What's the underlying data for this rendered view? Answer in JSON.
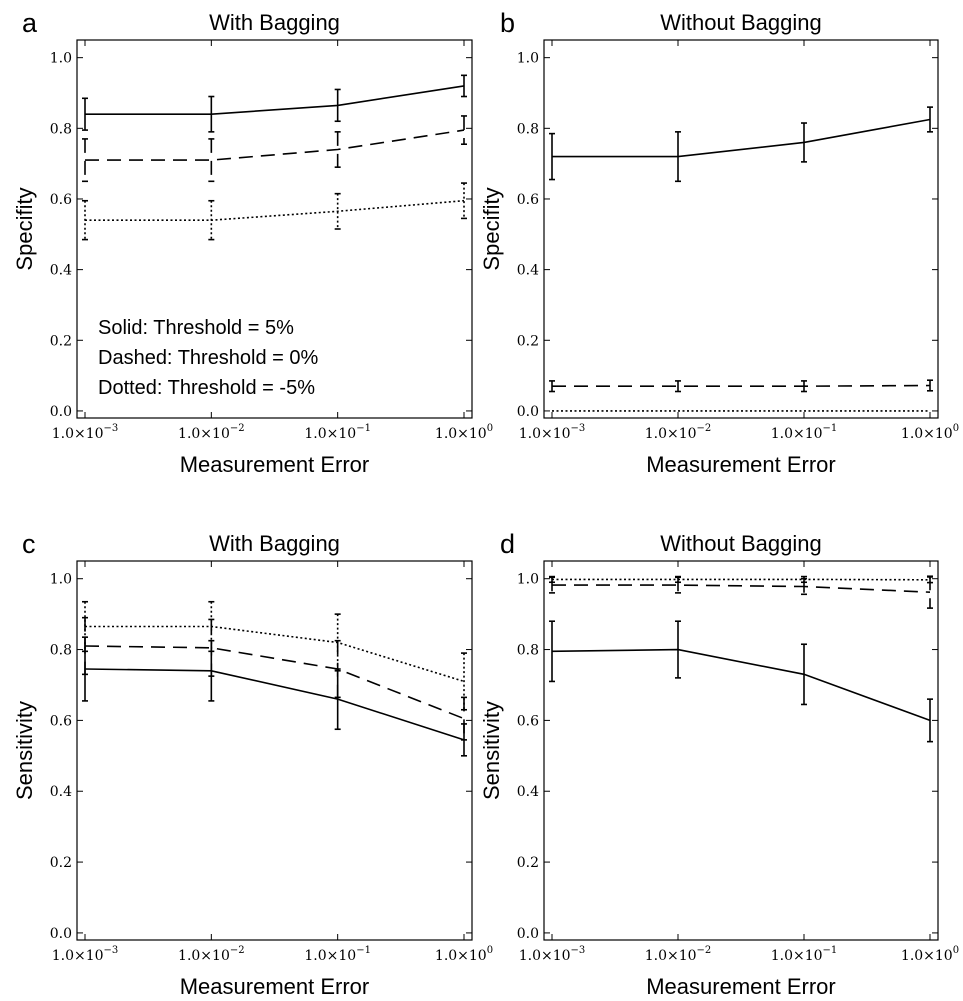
{
  "chart_data": [
    {
      "panel": "a",
      "type": "line",
      "title": "With Bagging",
      "xlabel": "Measurement Error",
      "ylabel": "Specifity",
      "xscale": "log",
      "x": [
        0.001,
        0.01,
        0.1,
        1
      ],
      "x_tick_labels": [
        {
          "base": "1.0×10",
          "exp": "−3"
        },
        {
          "base": "1.0×10",
          "exp": "−2"
        },
        {
          "base": "1.0×10",
          "exp": "−1"
        },
        {
          "base": "1.0×10",
          "exp": "0"
        }
      ],
      "y_ticks": [
        "0.0",
        "0.2",
        "0.4",
        "0.6",
        "0.8",
        "1.0"
      ],
      "ylim": [
        -0.02,
        1.05
      ],
      "grid": false,
      "legend_lines": [
        "Solid: Threshold = 5%",
        "Dashed: Threshold = 0%",
        "Dotted: Threshold = -5%"
      ],
      "series": [
        {
          "style": "solid",
          "values": [
            0.84,
            0.84,
            0.865,
            0.92
          ],
          "err": [
            0.045,
            0.05,
            0.045,
            0.03
          ]
        },
        {
          "style": "dashed",
          "values": [
            0.71,
            0.71,
            0.74,
            0.795
          ],
          "err": [
            0.06,
            0.06,
            0.05,
            0.04
          ]
        },
        {
          "style": "dotted",
          "values": [
            0.54,
            0.54,
            0.565,
            0.595
          ],
          "err": [
            0.055,
            0.055,
            0.05,
            0.05
          ]
        }
      ]
    },
    {
      "panel": "b",
      "type": "line",
      "title": "Without Bagging",
      "xlabel": "Measurement Error",
      "ylabel": "Specifity",
      "xscale": "log",
      "x": [
        0.001,
        0.01,
        0.1,
        1
      ],
      "x_tick_labels": [
        {
          "base": "1.0×10",
          "exp": "−3"
        },
        {
          "base": "1.0×10",
          "exp": "−2"
        },
        {
          "base": "1.0×10",
          "exp": "−1"
        },
        {
          "base": "1.0×10",
          "exp": "0"
        }
      ],
      "y_ticks": [
        "0.0",
        "0.2",
        "0.4",
        "0.6",
        "0.8",
        "1.0"
      ],
      "ylim": [
        -0.02,
        1.05
      ],
      "grid": false,
      "legend_lines": [],
      "series": [
        {
          "style": "solid",
          "values": [
            0.72,
            0.72,
            0.76,
            0.825
          ],
          "err": [
            0.065,
            0.07,
            0.055,
            0.035
          ]
        },
        {
          "style": "dashed",
          "values": [
            0.07,
            0.07,
            0.07,
            0.072
          ],
          "err": [
            0.015,
            0.015,
            0.015,
            0.015
          ]
        },
        {
          "style": "dotted",
          "values": [
            0.0,
            0.0,
            0.0,
            0.0
          ],
          "err": [
            0,
            0,
            0,
            0
          ]
        }
      ]
    },
    {
      "panel": "c",
      "type": "line",
      "title": "With Bagging",
      "xlabel": "Measurement Error",
      "ylabel": "Sensitivity",
      "xscale": "log",
      "x": [
        0.001,
        0.01,
        0.1,
        1
      ],
      "x_tick_labels": [
        {
          "base": "1.0×10",
          "exp": "−3"
        },
        {
          "base": "1.0×10",
          "exp": "−2"
        },
        {
          "base": "1.0×10",
          "exp": "−1"
        },
        {
          "base": "1.0×10",
          "exp": "0"
        }
      ],
      "y_ticks": [
        "0.0",
        "0.2",
        "0.4",
        "0.6",
        "0.8",
        "1.0"
      ],
      "ylim": [
        -0.02,
        1.05
      ],
      "grid": false,
      "legend_lines": [],
      "series": [
        {
          "style": "solid",
          "values": [
            0.745,
            0.74,
            0.66,
            0.545
          ],
          "err": [
            0.09,
            0.085,
            0.085,
            0.045
          ]
        },
        {
          "style": "dashed",
          "values": [
            0.81,
            0.805,
            0.745,
            0.605
          ],
          "err": [
            0.08,
            0.08,
            0.08,
            0.06
          ]
        },
        {
          "style": "dotted",
          "values": [
            0.865,
            0.865,
            0.82,
            0.71
          ],
          "err": [
            0.07,
            0.07,
            0.08,
            0.08
          ]
        }
      ]
    },
    {
      "panel": "d",
      "type": "line",
      "title": "Without Bagging",
      "xlabel": "Measurement Error",
      "ylabel": "Sensitivity",
      "xscale": "log",
      "x": [
        0.001,
        0.01,
        0.1,
        1
      ],
      "x_tick_labels": [
        {
          "base": "1.0×10",
          "exp": "−3"
        },
        {
          "base": "1.0×10",
          "exp": "−2"
        },
        {
          "base": "1.0×10",
          "exp": "−1"
        },
        {
          "base": "1.0×10",
          "exp": "0"
        }
      ],
      "y_ticks": [
        "0.0",
        "0.2",
        "0.4",
        "0.6",
        "0.8",
        "1.0"
      ],
      "ylim": [
        -0.02,
        1.05
      ],
      "grid": false,
      "legend_lines": [],
      "series": [
        {
          "style": "solid",
          "values": [
            0.795,
            0.8,
            0.73,
            0.6
          ],
          "err": [
            0.085,
            0.08,
            0.085,
            0.06
          ]
        },
        {
          "style": "dashed",
          "values": [
            0.982,
            0.982,
            0.978,
            0.962
          ],
          "err": [
            0.022,
            0.022,
            0.022,
            0.045
          ]
        },
        {
          "style": "dotted",
          "values": [
            0.998,
            0.998,
            0.998,
            0.997
          ],
          "err": [
            0.008,
            0.008,
            0.008,
            0.008
          ]
        }
      ]
    }
  ]
}
